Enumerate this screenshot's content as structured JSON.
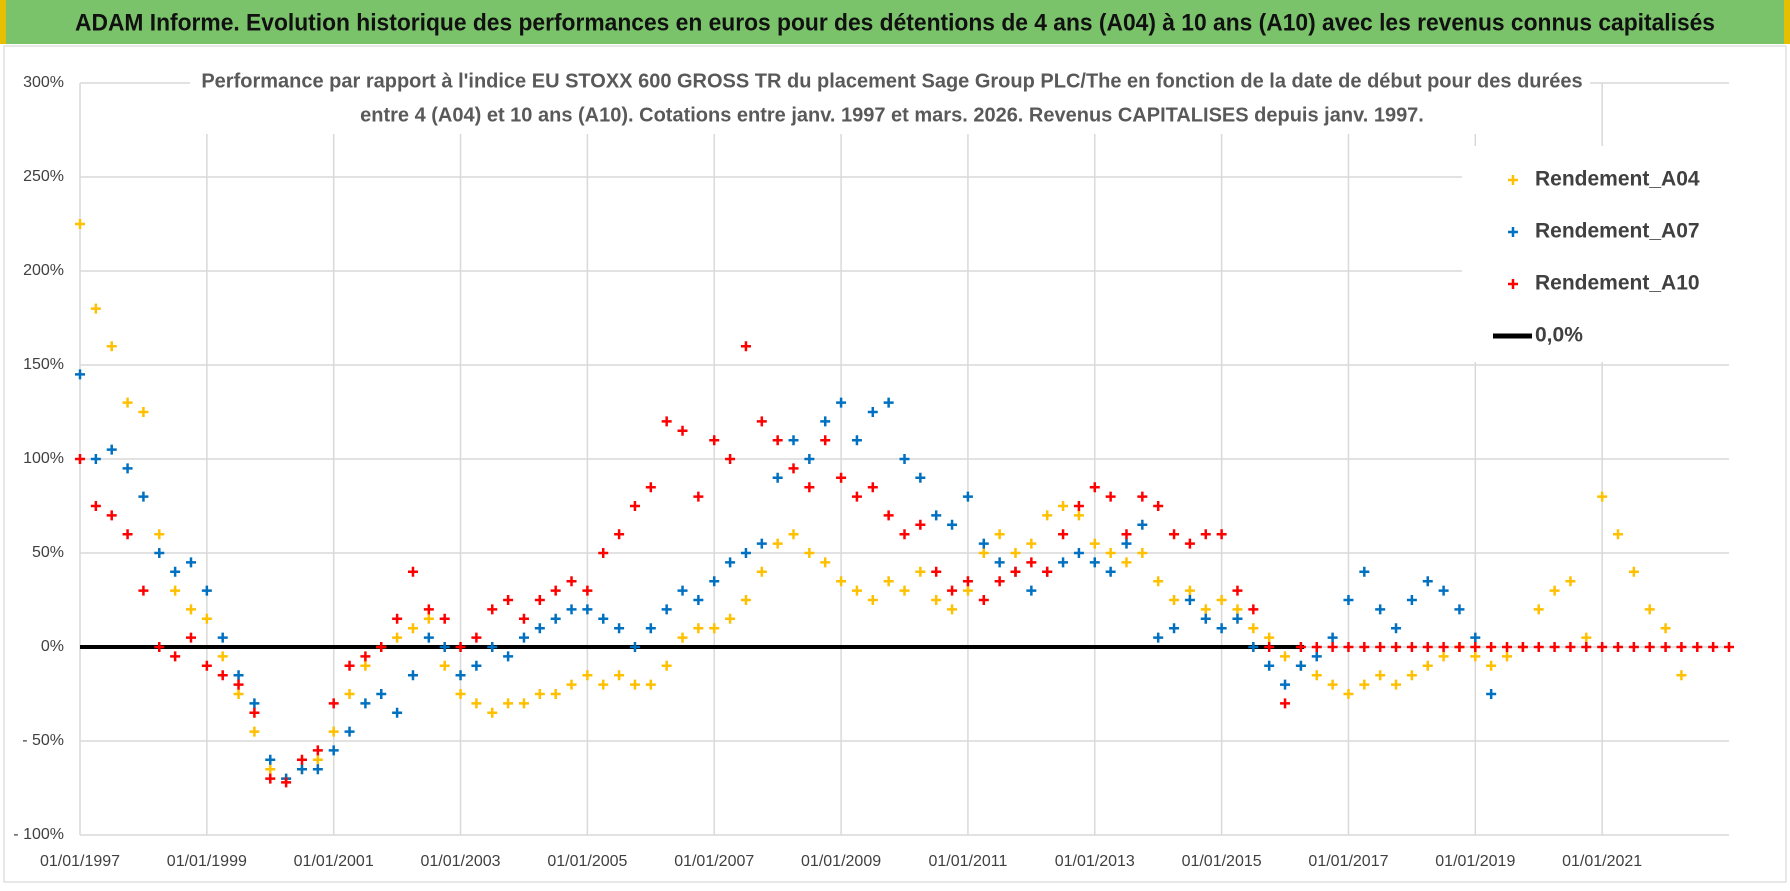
{
  "header": {
    "title": "ADAM Informe. Evolution historique des performances en euros pour des détentions de 4 ans (A04) à 10 ans (A10) avec les revenus connus capitalisés"
  },
  "chart_data": {
    "type": "scatter",
    "title": [
      "Performance par rapport à l'indice EU STOXX 600 GROSS TR  du placement Sage Group PLC/The en fonction de la date de début pour des durées",
      "entre 4 (A04) et 10 ans (A10). Cotations entre janv. 1997 et mars. 2026. Revenus CAPITALISES depuis janv. 1997."
    ],
    "x": [
      1997,
      1997.25,
      1997.5,
      1997.75,
      1998,
      1998.25,
      1998.5,
      1998.75,
      1999,
      1999.25,
      1999.5,
      1999.75,
      2000,
      2000.25,
      2000.5,
      2000.75,
      2001,
      2001.25,
      2001.5,
      2001.75,
      2002,
      2002.25,
      2002.5,
      2002.75,
      2003,
      2003.25,
      2003.5,
      2003.75,
      2004,
      2004.25,
      2004.5,
      2004.75,
      2005,
      2005.25,
      2005.5,
      2005.75,
      2006,
      2006.25,
      2006.5,
      2006.75,
      2007,
      2007.25,
      2007.5,
      2007.75,
      2008,
      2008.25,
      2008.5,
      2008.75,
      2009,
      2009.25,
      2009.5,
      2009.75,
      2010,
      2010.25,
      2010.5,
      2010.75,
      2011,
      2011.25,
      2011.5,
      2011.75,
      2012,
      2012.25,
      2012.5,
      2012.75,
      2013,
      2013.25,
      2013.5,
      2013.75,
      2014,
      2014.25,
      2014.5,
      2014.75,
      2015,
      2015.25,
      2015.5,
      2015.75,
      2016,
      2016.25,
      2016.5,
      2016.75,
      2017,
      2017.25,
      2017.5,
      2017.75,
      2018,
      2018.25,
      2018.5,
      2018.75,
      2019,
      2019.25,
      2019.5,
      2019.75,
      2020,
      2020.25,
      2020.5,
      2020.75,
      2021,
      2021.25,
      2021.5,
      2021.75,
      2022,
      2022.25,
      2022.5,
      2022.75,
      2023
    ],
    "series": [
      {
        "name": "Rendement_A04",
        "color": "#ffc000",
        "values": [
          225,
          180,
          160,
          130,
          125,
          60,
          30,
          20,
          15,
          -5,
          -25,
          -45,
          -65,
          -70,
          -65,
          -60,
          -45,
          -25,
          -10,
          0,
          5,
          10,
          15,
          -10,
          -25,
          -30,
          -35,
          -30,
          -30,
          -25,
          -25,
          -20,
          -15,
          -20,
          -15,
          -20,
          -20,
          -10,
          5,
          10,
          10,
          15,
          25,
          40,
          55,
          60,
          50,
          45,
          35,
          30,
          25,
          35,
          30,
          40,
          25,
          20,
          30,
          50,
          60,
          50,
          55,
          70,
          75,
          70,
          55,
          50,
          45,
          50,
          35,
          25,
          30,
          20,
          25,
          20,
          10,
          5,
          -5,
          -10,
          -15,
          -20,
          -25,
          -20,
          -15,
          -20,
          -15,
          -10,
          -5,
          0,
          -5,
          -10,
          -5,
          0,
          20,
          30,
          35,
          5,
          80,
          60,
          40,
          20,
          10,
          -15,
          null,
          null,
          null
        ]
      },
      {
        "name": "Rendement_A07",
        "color": "#0070c0",
        "values": [
          145,
          100,
          105,
          95,
          80,
          50,
          40,
          45,
          30,
          5,
          -15,
          -30,
          -60,
          -70,
          -65,
          -65,
          -55,
          -45,
          -30,
          -25,
          -35,
          -15,
          5,
          0,
          -15,
          -10,
          0,
          -5,
          5,
          10,
          15,
          20,
          20,
          15,
          10,
          0,
          10,
          20,
          30,
          25,
          35,
          45,
          50,
          55,
          90,
          110,
          100,
          120,
          130,
          110,
          125,
          130,
          100,
          90,
          70,
          65,
          80,
          55,
          45,
          40,
          30,
          40,
          45,
          50,
          45,
          40,
          55,
          65,
          5,
          10,
          25,
          15,
          10,
          15,
          0,
          -10,
          -20,
          -10,
          -5,
          5,
          25,
          40,
          20,
          10,
          25,
          35,
          30,
          20,
          5,
          -25,
          null,
          null,
          null,
          null,
          null,
          null,
          null,
          null,
          null,
          null,
          null,
          null,
          null,
          null,
          null
        ]
      },
      {
        "name": "Rendement_A10",
        "color": "#ff0000",
        "values": [
          100,
          75,
          70,
          60,
          30,
          0,
          -5,
          5,
          -10,
          -15,
          -20,
          -35,
          -70,
          -72,
          -60,
          -55,
          -30,
          -10,
          -5,
          0,
          15,
          40,
          20,
          15,
          0,
          5,
          20,
          25,
          15,
          25,
          30,
          35,
          30,
          50,
          60,
          75,
          85,
          120,
          115,
          80,
          110,
          100,
          160,
          120,
          110,
          95,
          85,
          110,
          90,
          80,
          85,
          70,
          60,
          65,
          40,
          30,
          35,
          25,
          35,
          40,
          45,
          40,
          60,
          75,
          85,
          80,
          60,
          80,
          75,
          60,
          55,
          60,
          60,
          30,
          20,
          0,
          -30,
          0,
          0,
          0,
          0,
          0,
          0,
          0,
          0,
          0,
          0,
          0,
          0,
          0,
          0,
          0,
          0,
          0,
          0,
          0,
          0,
          0,
          0,
          0,
          0,
          0,
          0,
          0,
          0
        ]
      },
      {
        "name": "0,0%",
        "color": "#000000",
        "line": true,
        "x": [
          1997,
          2016.3
        ],
        "values": [
          0,
          0
        ]
      }
    ],
    "xlim": [
      1997,
      2023
    ],
    "xticks": [
      {
        "value": 1997,
        "label": "01/01/1997"
      },
      {
        "value": 1999,
        "label": "01/01/1999"
      },
      {
        "value": 2001,
        "label": "01/01/2001"
      },
      {
        "value": 2003,
        "label": "01/01/2003"
      },
      {
        "value": 2005,
        "label": "01/01/2005"
      },
      {
        "value": 2007,
        "label": "01/01/2007"
      },
      {
        "value": 2009,
        "label": "01/01/2009"
      },
      {
        "value": 2011,
        "label": "01/01/2011"
      },
      {
        "value": 2013,
        "label": "01/01/2013"
      },
      {
        "value": 2015,
        "label": "01/01/2015"
      },
      {
        "value": 2017,
        "label": "01/01/2017"
      },
      {
        "value": 2019,
        "label": "01/01/2019"
      },
      {
        "value": 2021,
        "label": "01/01/2021"
      }
    ],
    "ylim": [
      -100,
      300
    ],
    "yticks": [
      {
        "value": 300,
        "label": "300%"
      },
      {
        "value": 250,
        "label": "250%"
      },
      {
        "value": 200,
        "label": "200%"
      },
      {
        "value": 150,
        "label": "150%"
      },
      {
        "value": 100,
        "label": "100%"
      },
      {
        "value": 50,
        "label": "50%"
      },
      {
        "value": 0,
        "label": "0%"
      },
      {
        "value": -50,
        "label": "- 50%"
      },
      {
        "value": -100,
        "label": "- 100%"
      }
    ],
    "grid": true,
    "legend": "upper right"
  }
}
